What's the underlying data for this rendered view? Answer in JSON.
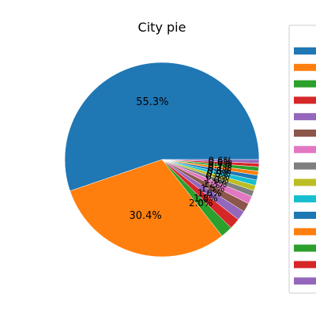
{
  "chart_data": {
    "type": "pie",
    "title": "City pie",
    "start_angle_deg": 0,
    "direction": "counterclockwise",
    "slices": [
      {
        "label": "55.3%",
        "value": 55.3,
        "color": "#1f77b4"
      },
      {
        "label": "30.4%",
        "value": 30.4,
        "color": "#ff7f0e"
      },
      {
        "label": "2.0%",
        "value": 2.0,
        "color": "#2ca02c"
      },
      {
        "label": "1.8%",
        "value": 1.8,
        "color": "#d62728"
      },
      {
        "label": "1.6%",
        "value": 1.6,
        "color": "#9467bd"
      },
      {
        "label": "1.5%",
        "value": 1.5,
        "color": "#8c564b"
      },
      {
        "label": "1.3%",
        "value": 1.3,
        "color": "#e377c2"
      },
      {
        "label": "1.0%",
        "value": 1.0,
        "color": "#7f7f7f"
      },
      {
        "label": "0.9%",
        "value": 0.9,
        "color": "#bcbd22"
      },
      {
        "label": "0.9%",
        "value": 0.9,
        "color": "#17becf"
      },
      {
        "label": "0.8%",
        "value": 0.8,
        "color": "#1f77b4"
      },
      {
        "label": "0.7%",
        "value": 0.7,
        "color": "#ff7f0e"
      },
      {
        "label": "0.7%",
        "value": 0.7,
        "color": "#2ca02c"
      },
      {
        "label": "0.6%",
        "value": 0.6,
        "color": "#d62728"
      },
      {
        "label": "0.6%",
        "value": 0.6,
        "color": "#9467bd"
      }
    ],
    "legend": {
      "placement": "right",
      "colors": [
        "#1f77b4",
        "#ff7f0e",
        "#2ca02c",
        "#d62728",
        "#9467bd",
        "#8c564b",
        "#e377c2",
        "#7f7f7f",
        "#bcbd22",
        "#17becf",
        "#1f77b4",
        "#ff7f0e",
        "#2ca02c",
        "#d62728",
        "#9467bd"
      ]
    }
  }
}
